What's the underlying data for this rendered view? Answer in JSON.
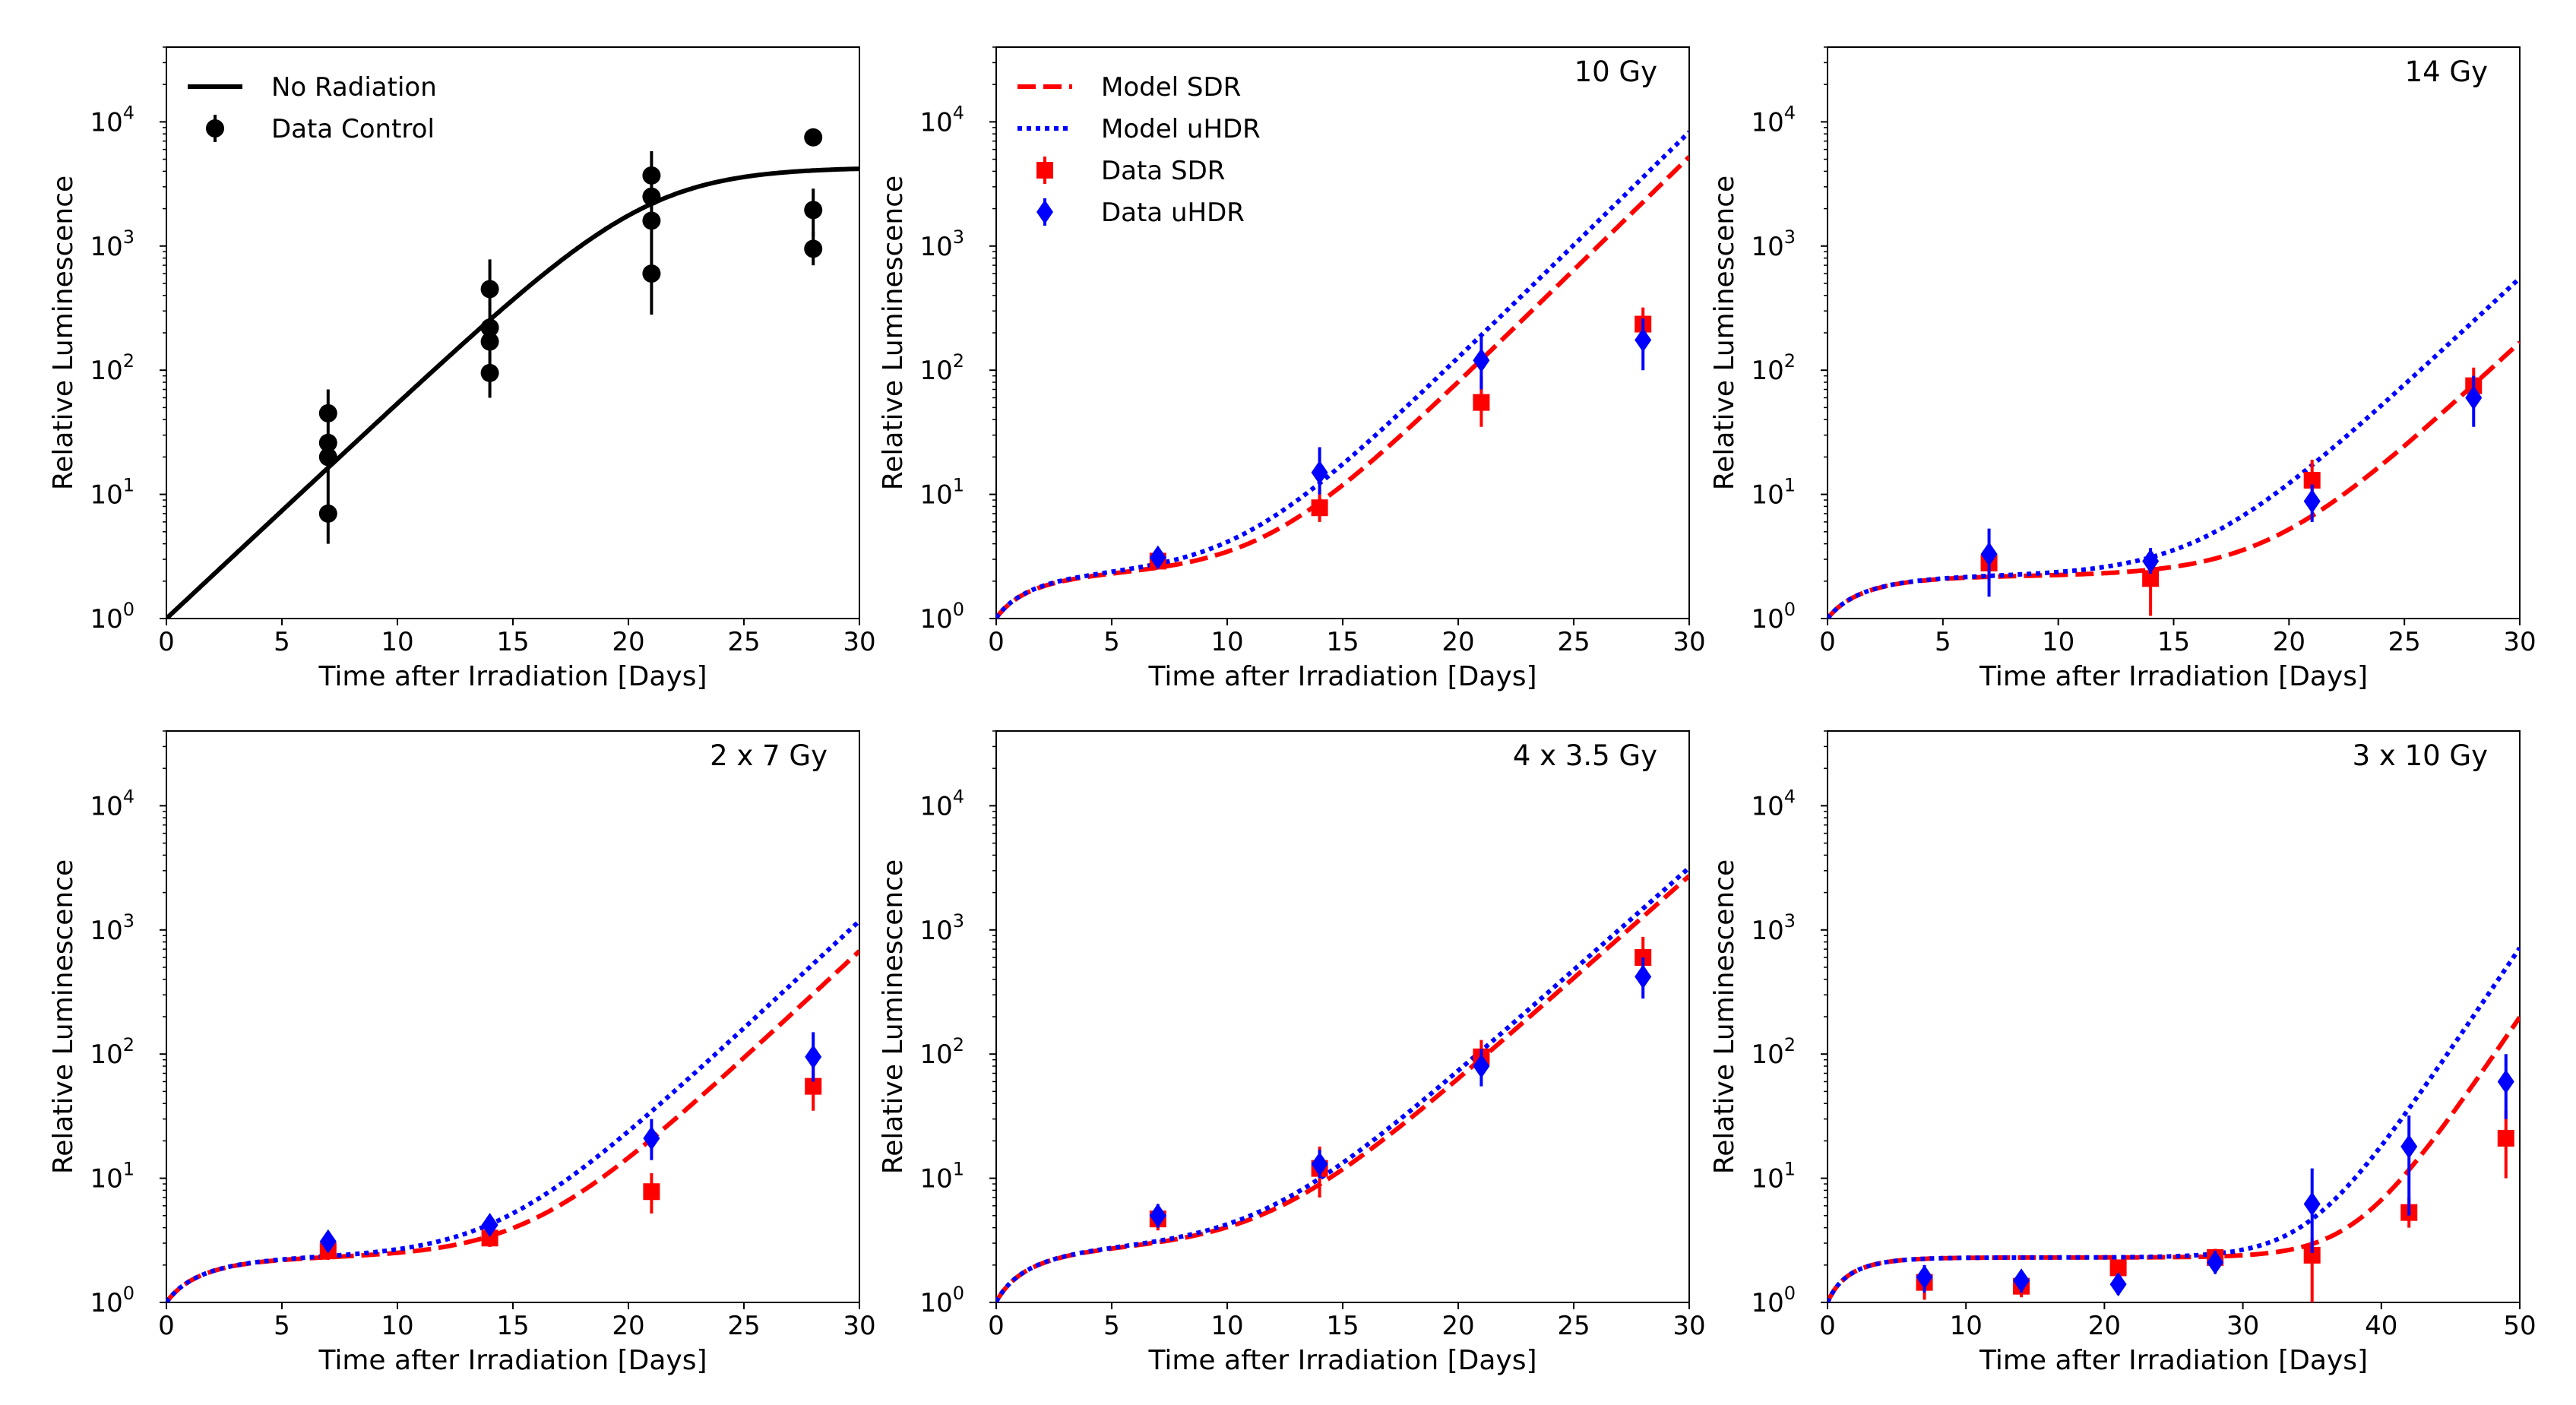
{
  "colors": {
    "sdr": "#ff0000",
    "uhdr": "#0000ff",
    "control": "#000000"
  },
  "chart_data": [
    {
      "type": "line",
      "title": "",
      "xlabel": "Time after Irradiation [Days]",
      "ylabel": "Relative Luminescence",
      "xlim": [
        0,
        30
      ],
      "ylim": [
        1,
        40000
      ],
      "yscale": "log",
      "xticks": [
        "0",
        "5",
        "10",
        "15",
        "20",
        "25",
        "30"
      ],
      "yticks": [
        {
          "base": "10",
          "exp": "0"
        },
        {
          "base": "10",
          "exp": "1"
        },
        {
          "base": "10",
          "exp": "2"
        },
        {
          "base": "10",
          "exp": "3"
        },
        {
          "base": "10",
          "exp": "4"
        }
      ],
      "legend": [
        "No Radiation",
        "Data Control"
      ],
      "legend_position": "top-left",
      "series": [
        {
          "name": "No Radiation",
          "kind": "curve",
          "style": "solid",
          "color": "#000000",
          "curve": "logistic",
          "params": {
            "K": 4300,
            "r": 0.4,
            "x0": 0
          }
        },
        {
          "name": "Data Control",
          "kind": "points",
          "marker": "circle",
          "color": "#000000",
          "points": [
            {
              "x": 7,
              "y": 45,
              "lo": 45,
              "hi": 45
            },
            {
              "x": 7,
              "y": 26,
              "lo": 26,
              "hi": 26
            },
            {
              "x": 7,
              "y": 20,
              "lo": 20,
              "hi": 20
            },
            {
              "x": 7,
              "y": 7,
              "lo": 4,
              "hi": 70
            },
            {
              "x": 14,
              "y": 450,
              "lo": 450,
              "hi": 450
            },
            {
              "x": 14,
              "y": 220,
              "lo": 220,
              "hi": 220
            },
            {
              "x": 14,
              "y": 170,
              "lo": 170,
              "hi": 170
            },
            {
              "x": 14,
              "y": 95,
              "lo": 60,
              "hi": 780
            },
            {
              "x": 21,
              "y": 3700,
              "lo": 3700,
              "hi": 3700
            },
            {
              "x": 21,
              "y": 2500,
              "lo": 2500,
              "hi": 2500
            },
            {
              "x": 21,
              "y": 1600,
              "lo": 1600,
              "hi": 1600
            },
            {
              "x": 21,
              "y": 600,
              "lo": 280,
              "hi": 5800
            },
            {
              "x": 28,
              "y": 7500,
              "lo": 7500,
              "hi": 7500
            },
            {
              "x": 28,
              "y": 1950,
              "lo": 1200,
              "hi": 2900
            },
            {
              "x": 28,
              "y": 950,
              "lo": 700,
              "hi": 1300
            }
          ]
        }
      ]
    },
    {
      "type": "line",
      "title": "10 Gy",
      "xlabel": "Time after Irradiation [Days]",
      "ylabel": "Relative Luminescence",
      "xlim": [
        0,
        30
      ],
      "ylim": [
        1,
        40000
      ],
      "yscale": "log",
      "xticks": [
        "0",
        "5",
        "10",
        "15",
        "20",
        "25",
        "30"
      ],
      "yticks": [
        {
          "base": "10",
          "exp": "0"
        },
        {
          "base": "10",
          "exp": "1"
        },
        {
          "base": "10",
          "exp": "2"
        },
        {
          "base": "10",
          "exp": "3"
        },
        {
          "base": "10",
          "exp": "4"
        }
      ],
      "legend": [
        "Model SDR",
        "Model uHDR",
        "Data SDR",
        "Data uHDR"
      ],
      "legend_position": "top-left",
      "series": [
        {
          "name": "Model SDR",
          "kind": "curve",
          "style": "dashed",
          "color": "#ff0000",
          "curve": "regrowth",
          "params": {
            "p": 2.3,
            "tau": 2.2,
            "g": 0.42,
            "t0": 11.6
          }
        },
        {
          "name": "Model uHDR",
          "kind": "curve",
          "style": "dotted",
          "color": "#0000ff",
          "curve": "regrowth",
          "params": {
            "p": 2.3,
            "tau": 2.2,
            "g": 0.42,
            "t0": 10.5
          }
        },
        {
          "name": "Data SDR",
          "kind": "points",
          "marker": "square",
          "color": "#ff0000",
          "points": [
            {
              "x": 7,
              "y": 2.9,
              "lo": 2.5,
              "hi": 3.4
            },
            {
              "x": 14,
              "y": 7.8,
              "lo": 6,
              "hi": 11
            },
            {
              "x": 21,
              "y": 55,
              "lo": 35,
              "hi": 90
            },
            {
              "x": 28,
              "y": 235,
              "lo": 180,
              "hi": 320
            }
          ]
        },
        {
          "name": "Data uHDR",
          "kind": "points",
          "marker": "diamond",
          "color": "#0000ff",
          "points": [
            {
              "x": 7,
              "y": 3.1,
              "lo": 2.6,
              "hi": 3.6
            },
            {
              "x": 14,
              "y": 15,
              "lo": 10,
              "hi": 24
            },
            {
              "x": 21,
              "y": 120,
              "lo": 70,
              "hi": 190
            },
            {
              "x": 28,
              "y": 175,
              "lo": 100,
              "hi": 260
            }
          ]
        }
      ]
    },
    {
      "type": "line",
      "title": "14 Gy",
      "xlabel": "Time after Irradiation [Days]",
      "ylabel": "Relative Luminescence",
      "xlim": [
        0,
        30
      ],
      "ylim": [
        1,
        40000
      ],
      "yscale": "log",
      "xticks": [
        "0",
        "5",
        "10",
        "15",
        "20",
        "25",
        "30"
      ],
      "yticks": [
        {
          "base": "10",
          "exp": "0"
        },
        {
          "base": "10",
          "exp": "1"
        },
        {
          "base": "10",
          "exp": "2"
        },
        {
          "base": "10",
          "exp": "3"
        },
        {
          "base": "10",
          "exp": "4"
        }
      ],
      "series": [
        {
          "name": "Model SDR",
          "kind": "curve",
          "style": "dashed",
          "color": "#ff0000",
          "curve": "regrowth",
          "params": {
            "p": 2.2,
            "tau": 2.2,
            "g": 0.4,
            "t0": 19.2
          }
        },
        {
          "name": "Model uHDR",
          "kind": "curve",
          "style": "dotted",
          "color": "#0000ff",
          "curve": "regrowth",
          "params": {
            "p": 2.2,
            "tau": 2.2,
            "g": 0.4,
            "t0": 16.2
          }
        },
        {
          "name": "Data SDR",
          "kind": "points",
          "marker": "square",
          "color": "#ff0000",
          "points": [
            {
              "x": 7,
              "y": 2.8,
              "lo": 2.0,
              "hi": 4.0
            },
            {
              "x": 14,
              "y": 2.1,
              "lo": 1.05,
              "hi": 3.0
            },
            {
              "x": 21,
              "y": 13,
              "lo": 9,
              "hi": 19
            },
            {
              "x": 28,
              "y": 75,
              "lo": 50,
              "hi": 105
            }
          ]
        },
        {
          "name": "Data uHDR",
          "kind": "points",
          "marker": "diamond",
          "color": "#0000ff",
          "points": [
            {
              "x": 7,
              "y": 3.3,
              "lo": 1.5,
              "hi": 5.3
            },
            {
              "x": 14,
              "y": 2.9,
              "lo": 2.3,
              "hi": 3.7
            },
            {
              "x": 21,
              "y": 8.8,
              "lo": 6,
              "hi": 12
            },
            {
              "x": 28,
              "y": 60,
              "lo": 35,
              "hi": 90
            }
          ]
        }
      ]
    },
    {
      "type": "line",
      "title": "2 x 7 Gy",
      "xlabel": "Time after Irradiation [Days]",
      "ylabel": "Relative Luminescence",
      "xlim": [
        0,
        30
      ],
      "ylim": [
        1,
        40000
      ],
      "yscale": "log",
      "xticks": [
        "0",
        "5",
        "10",
        "15",
        "20",
        "25",
        "30"
      ],
      "yticks": [
        {
          "base": "10",
          "exp": "0"
        },
        {
          "base": "10",
          "exp": "1"
        },
        {
          "base": "10",
          "exp": "2"
        },
        {
          "base": "10",
          "exp": "3"
        },
        {
          "base": "10",
          "exp": "4"
        }
      ],
      "series": [
        {
          "name": "Model SDR",
          "kind": "curve",
          "style": "dashed",
          "color": "#ff0000",
          "curve": "regrowth",
          "params": {
            "p": 2.3,
            "tau": 2.2,
            "g": 0.4,
            "t0": 15.8
          }
        },
        {
          "name": "Model uHDR",
          "kind": "curve",
          "style": "dotted",
          "color": "#0000ff",
          "curve": "regrowth",
          "params": {
            "p": 2.3,
            "tau": 2.2,
            "g": 0.4,
            "t0": 14.4
          }
        },
        {
          "name": "Data SDR",
          "kind": "points",
          "marker": "square",
          "color": "#ff0000",
          "points": [
            {
              "x": 7,
              "y": 2.6,
              "lo": 2.2,
              "hi": 3.0
            },
            {
              "x": 14,
              "y": 3.3,
              "lo": 2.8,
              "hi": 3.9
            },
            {
              "x": 21,
              "y": 7.8,
              "lo": 5.2,
              "hi": 11
            },
            {
              "x": 28,
              "y": 55,
              "lo": 35,
              "hi": 80
            }
          ]
        },
        {
          "name": "Data uHDR",
          "kind": "points",
          "marker": "diamond",
          "color": "#0000ff",
          "points": [
            {
              "x": 7,
              "y": 3.1,
              "lo": 2.6,
              "hi": 3.7
            },
            {
              "x": 14,
              "y": 4.2,
              "lo": 3.5,
              "hi": 5.0
            },
            {
              "x": 21,
              "y": 21,
              "lo": 14,
              "hi": 30
            },
            {
              "x": 28,
              "y": 95,
              "lo": 60,
              "hi": 150
            }
          ]
        }
      ]
    },
    {
      "type": "line",
      "title": "4 x 3.5 Gy",
      "xlabel": "Time after Irradiation [Days]",
      "ylabel": "Relative Luminescence",
      "xlim": [
        0,
        30
      ],
      "ylim": [
        1,
        40000
      ],
      "yscale": "log",
      "xticks": [
        "0",
        "5",
        "10",
        "15",
        "20",
        "25",
        "30"
      ],
      "yticks": [
        {
          "base": "10",
          "exp": "0"
        },
        {
          "base": "10",
          "exp": "1"
        },
        {
          "base": "10",
          "exp": "2"
        },
        {
          "base": "10",
          "exp": "3"
        },
        {
          "base": "10",
          "exp": "4"
        }
      ],
      "series": [
        {
          "name": "Model SDR",
          "kind": "curve",
          "style": "dashed",
          "color": "#ff0000",
          "curve": "regrowth",
          "params": {
            "p": 2.7,
            "tau": 2.2,
            "g": 0.38,
            "t0": 11.8
          }
        },
        {
          "name": "Model uHDR",
          "kind": "curve",
          "style": "dotted",
          "color": "#0000ff",
          "curve": "regrowth",
          "params": {
            "p": 2.7,
            "tau": 2.2,
            "g": 0.38,
            "t0": 11.4
          }
        },
        {
          "name": "Data SDR",
          "kind": "points",
          "marker": "square",
          "color": "#ff0000",
          "points": [
            {
              "x": 7,
              "y": 4.7,
              "lo": 3.8,
              "hi": 5.8
            },
            {
              "x": 14,
              "y": 12,
              "lo": 7,
              "hi": 18
            },
            {
              "x": 21,
              "y": 95,
              "lo": 70,
              "hi": 130
            },
            {
              "x": 28,
              "y": 600,
              "lo": 400,
              "hi": 880
            }
          ]
        },
        {
          "name": "Data uHDR",
          "kind": "points",
          "marker": "diamond",
          "color": "#0000ff",
          "points": [
            {
              "x": 7,
              "y": 5.0,
              "lo": 4.0,
              "hi": 6.2
            },
            {
              "x": 14,
              "y": 13,
              "lo": 10,
              "hi": 17
            },
            {
              "x": 21,
              "y": 80,
              "lo": 55,
              "hi": 110
            },
            {
              "x": 28,
              "y": 420,
              "lo": 280,
              "hi": 600
            }
          ]
        }
      ]
    },
    {
      "type": "line",
      "title": "3 x 10 Gy",
      "xlabel": "Time after Irradiation [Days]",
      "ylabel": "Relative Luminescence",
      "xlim": [
        0,
        50
      ],
      "ylim": [
        1,
        40000
      ],
      "yscale": "log",
      "xticks": [
        "0",
        "10",
        "20",
        "30",
        "40",
        "50"
      ],
      "yticks": [
        {
          "base": "10",
          "exp": "0"
        },
        {
          "base": "10",
          "exp": "1"
        },
        {
          "base": "10",
          "exp": "2"
        },
        {
          "base": "10",
          "exp": "3"
        },
        {
          "base": "10",
          "exp": "4"
        }
      ],
      "series": [
        {
          "name": "Model SDR",
          "kind": "curve",
          "style": "dashed",
          "color": "#ff0000",
          "curve": "regrowth",
          "params": {
            "p": 2.3,
            "tau": 2.2,
            "g": 0.38,
            "t0": 38.3
          }
        },
        {
          "name": "Model uHDR",
          "kind": "curve",
          "style": "dotted",
          "color": "#0000ff",
          "curve": "regrowth",
          "params": {
            "p": 2.3,
            "tau": 2.2,
            "g": 0.38,
            "t0": 34.9
          }
        },
        {
          "name": "Data SDR",
          "kind": "points",
          "marker": "square",
          "color": "#ff0000",
          "points": [
            {
              "x": 7,
              "y": 1.45,
              "lo": 1.05,
              "hi": 1.8
            },
            {
              "x": 14,
              "y": 1.35,
              "lo": 1.1,
              "hi": 1.6
            },
            {
              "x": 21,
              "y": 1.9,
              "lo": 1.6,
              "hi": 2.2
            },
            {
              "x": 28,
              "y": 2.3,
              "lo": 1.9,
              "hi": 2.7
            },
            {
              "x": 35,
              "y": 2.4,
              "lo": 1.0,
              "hi": 3.3
            },
            {
              "x": 42,
              "y": 5.3,
              "lo": 4.0,
              "hi": 7.0
            },
            {
              "x": 49,
              "y": 21,
              "lo": 10,
              "hi": 35
            }
          ]
        },
        {
          "name": "Data uHDR",
          "kind": "points",
          "marker": "diamond",
          "color": "#0000ff",
          "points": [
            {
              "x": 7,
              "y": 1.6,
              "lo": 1.2,
              "hi": 2.0
            },
            {
              "x": 14,
              "y": 1.5,
              "lo": 1.2,
              "hi": 1.8
            },
            {
              "x": 21,
              "y": 1.4,
              "lo": 1.15,
              "hi": 1.7
            },
            {
              "x": 28,
              "y": 2.1,
              "lo": 1.7,
              "hi": 2.6
            },
            {
              "x": 35,
              "y": 6.2,
              "lo": 2.5,
              "hi": 12
            },
            {
              "x": 42,
              "y": 18,
              "lo": 5,
              "hi": 32
            },
            {
              "x": 49,
              "y": 60,
              "lo": 30,
              "hi": 100
            }
          ]
        }
      ]
    }
  ]
}
